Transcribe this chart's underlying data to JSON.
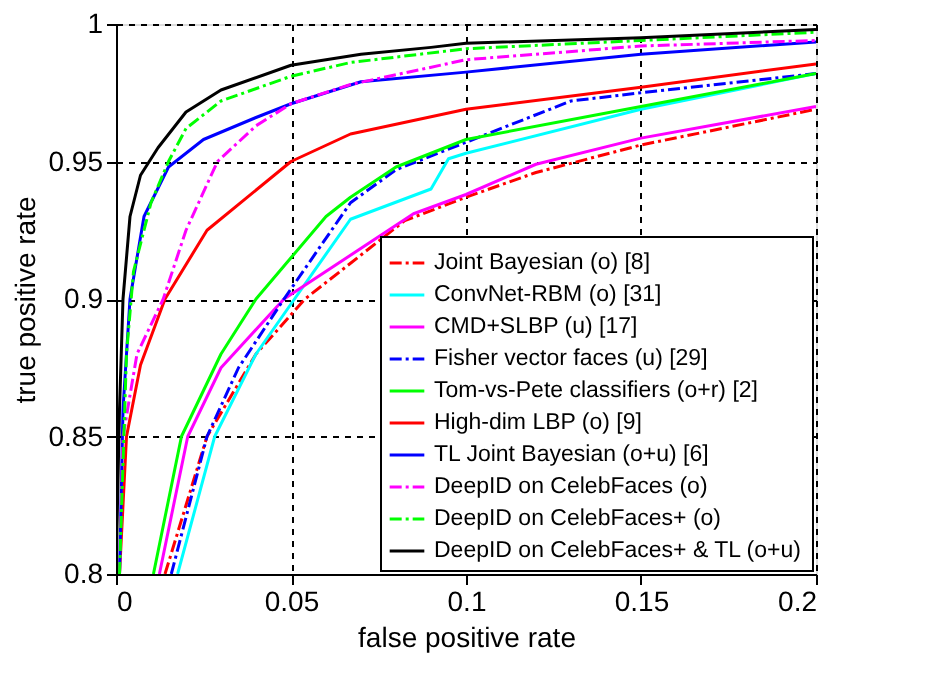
{
  "chart_data": {
    "type": "line",
    "xlabel": "false positive rate",
    "ylabel": "true positive rate",
    "xlim": [
      0,
      0.2
    ],
    "ylim": [
      0.8,
      1
    ],
    "xticks": [
      0,
      0.05,
      0.1,
      0.15,
      0.2
    ],
    "yticks": [
      0.8,
      0.85,
      0.9,
      0.95,
      1
    ],
    "grid": true,
    "legend": "bottom right",
    "marker": "none",
    "series": [
      {
        "name": "Joint Bayesian (o) [8]",
        "color": "#ff0000",
        "line_style": "dashed",
        "x": [
          0.014,
          0.026,
          0.04,
          0.054,
          0.0825,
          0.1,
          0.12,
          0.15,
          0.2
        ],
        "values": [
          0.8,
          0.85,
          0.88,
          0.9,
          0.9285,
          0.937,
          0.946,
          0.956,
          0.969
        ]
      },
      {
        "name": "ConvNet-RBM (o) [31]",
        "color": "#00ffff",
        "line_style": "solid",
        "x": [
          0.0176,
          0.0282,
          0.04,
          0.051,
          0.067,
          0.09,
          0.095,
          0.1,
          0.15,
          0.2
        ],
        "values": [
          0.8,
          0.85,
          0.88,
          0.9,
          0.929,
          0.94,
          0.951,
          0.953,
          0.969,
          0.982
        ]
      },
      {
        "name": "CMD+SLBP (u) [17]",
        "color": "#ff00ff",
        "line_style": "solid",
        "x": [
          0.0124,
          0.0205,
          0.03,
          0.048,
          0.085,
          0.1,
          0.12,
          0.15,
          0.2
        ],
        "values": [
          0.8,
          0.85,
          0.875,
          0.9,
          0.931,
          0.938,
          0.949,
          0.9585,
          0.97
        ]
      },
      {
        "name": "Fisher vector faces (u) [29]",
        "color": "#0000ff",
        "line_style": "dashed",
        "x": [
          0.0158,
          0.026,
          0.035,
          0.048,
          0.067,
          0.08,
          0.1,
          0.13,
          0.15,
          0.2
        ],
        "values": [
          0.8,
          0.85,
          0.875,
          0.9,
          0.935,
          0.947,
          0.957,
          0.972,
          0.975,
          0.982
        ]
      },
      {
        "name": "Tom-vs-Pete classifiers (o+r) [2]",
        "color": "#00ff00",
        "line_style": "solid",
        "x": [
          0.0107,
          0.0187,
          0.03,
          0.04,
          0.05,
          0.06,
          0.067,
          0.08,
          0.1,
          0.15,
          0.2
        ],
        "values": [
          0.8,
          0.85,
          0.88,
          0.9,
          0.915,
          0.93,
          0.937,
          0.948,
          0.958,
          0.97,
          0.982
        ]
      },
      {
        "name": "High-dim LBP (o) [9]",
        "color": "#ff0000",
        "line_style": "solid",
        "x": [
          0.001,
          0.003,
          0.007,
          0.014,
          0.026,
          0.05,
          0.067,
          0.1,
          0.15,
          0.2
        ],
        "values": [
          0.8,
          0.85,
          0.876,
          0.9,
          0.925,
          0.95,
          0.96,
          0.969,
          0.977,
          0.9855
        ]
      },
      {
        "name": "TL Joint Bayesian (o+u)     [6]",
        "color": "#0000ff",
        "line_style": "solid",
        "x": [
          0.001,
          0.002,
          0.004,
          0.008,
          0.015,
          0.025,
          0.04,
          0.05,
          0.07,
          0.1,
          0.15,
          0.2
        ],
        "values": [
          0.8,
          0.86,
          0.9,
          0.93,
          0.948,
          0.958,
          0.966,
          0.971,
          0.979,
          0.9825,
          0.989,
          0.9935
        ]
      },
      {
        "name": "DeepID on CelebFaces (o)",
        "color": "#ff00ff",
        "line_style": "dashed",
        "x": [
          0.001,
          0.002,
          0.006,
          0.0135,
          0.02,
          0.029,
          0.04,
          0.05,
          0.067,
          0.1,
          0.15,
          0.2
        ],
        "values": [
          0.8,
          0.85,
          0.88,
          0.9,
          0.925,
          0.95,
          0.963,
          0.971,
          0.978,
          0.987,
          0.992,
          0.994
        ]
      },
      {
        "name": "DeepID on CelebFaces+ (o)",
        "color": "#00ff00",
        "line_style": "dashed",
        "x": [
          0.001,
          0.003,
          0.005,
          0.01,
          0.015,
          0.02,
          0.03,
          0.05,
          0.067,
          0.1,
          0.15,
          0.2
        ],
        "values": [
          0.8,
          0.88,
          0.91,
          0.935,
          0.95,
          0.962,
          0.972,
          0.981,
          0.986,
          0.991,
          0.994,
          0.997
        ]
      },
      {
        "name": "DeepID on CelebFaces+ & TL (o+u)",
        "color": "#000000",
        "line_style": "solid",
        "x": [
          0,
          0.001,
          0.002,
          0.004,
          0.007,
          0.012,
          0.02,
          0.03,
          0.05,
          0.07,
          0.09,
          0.1,
          0.15,
          0.2
        ],
        "values": [
          0.8,
          0.86,
          0.9,
          0.93,
          0.945,
          0.955,
          0.968,
          0.976,
          0.985,
          0.989,
          0.9915,
          0.993,
          0.995,
          0.998
        ]
      }
    ]
  }
}
